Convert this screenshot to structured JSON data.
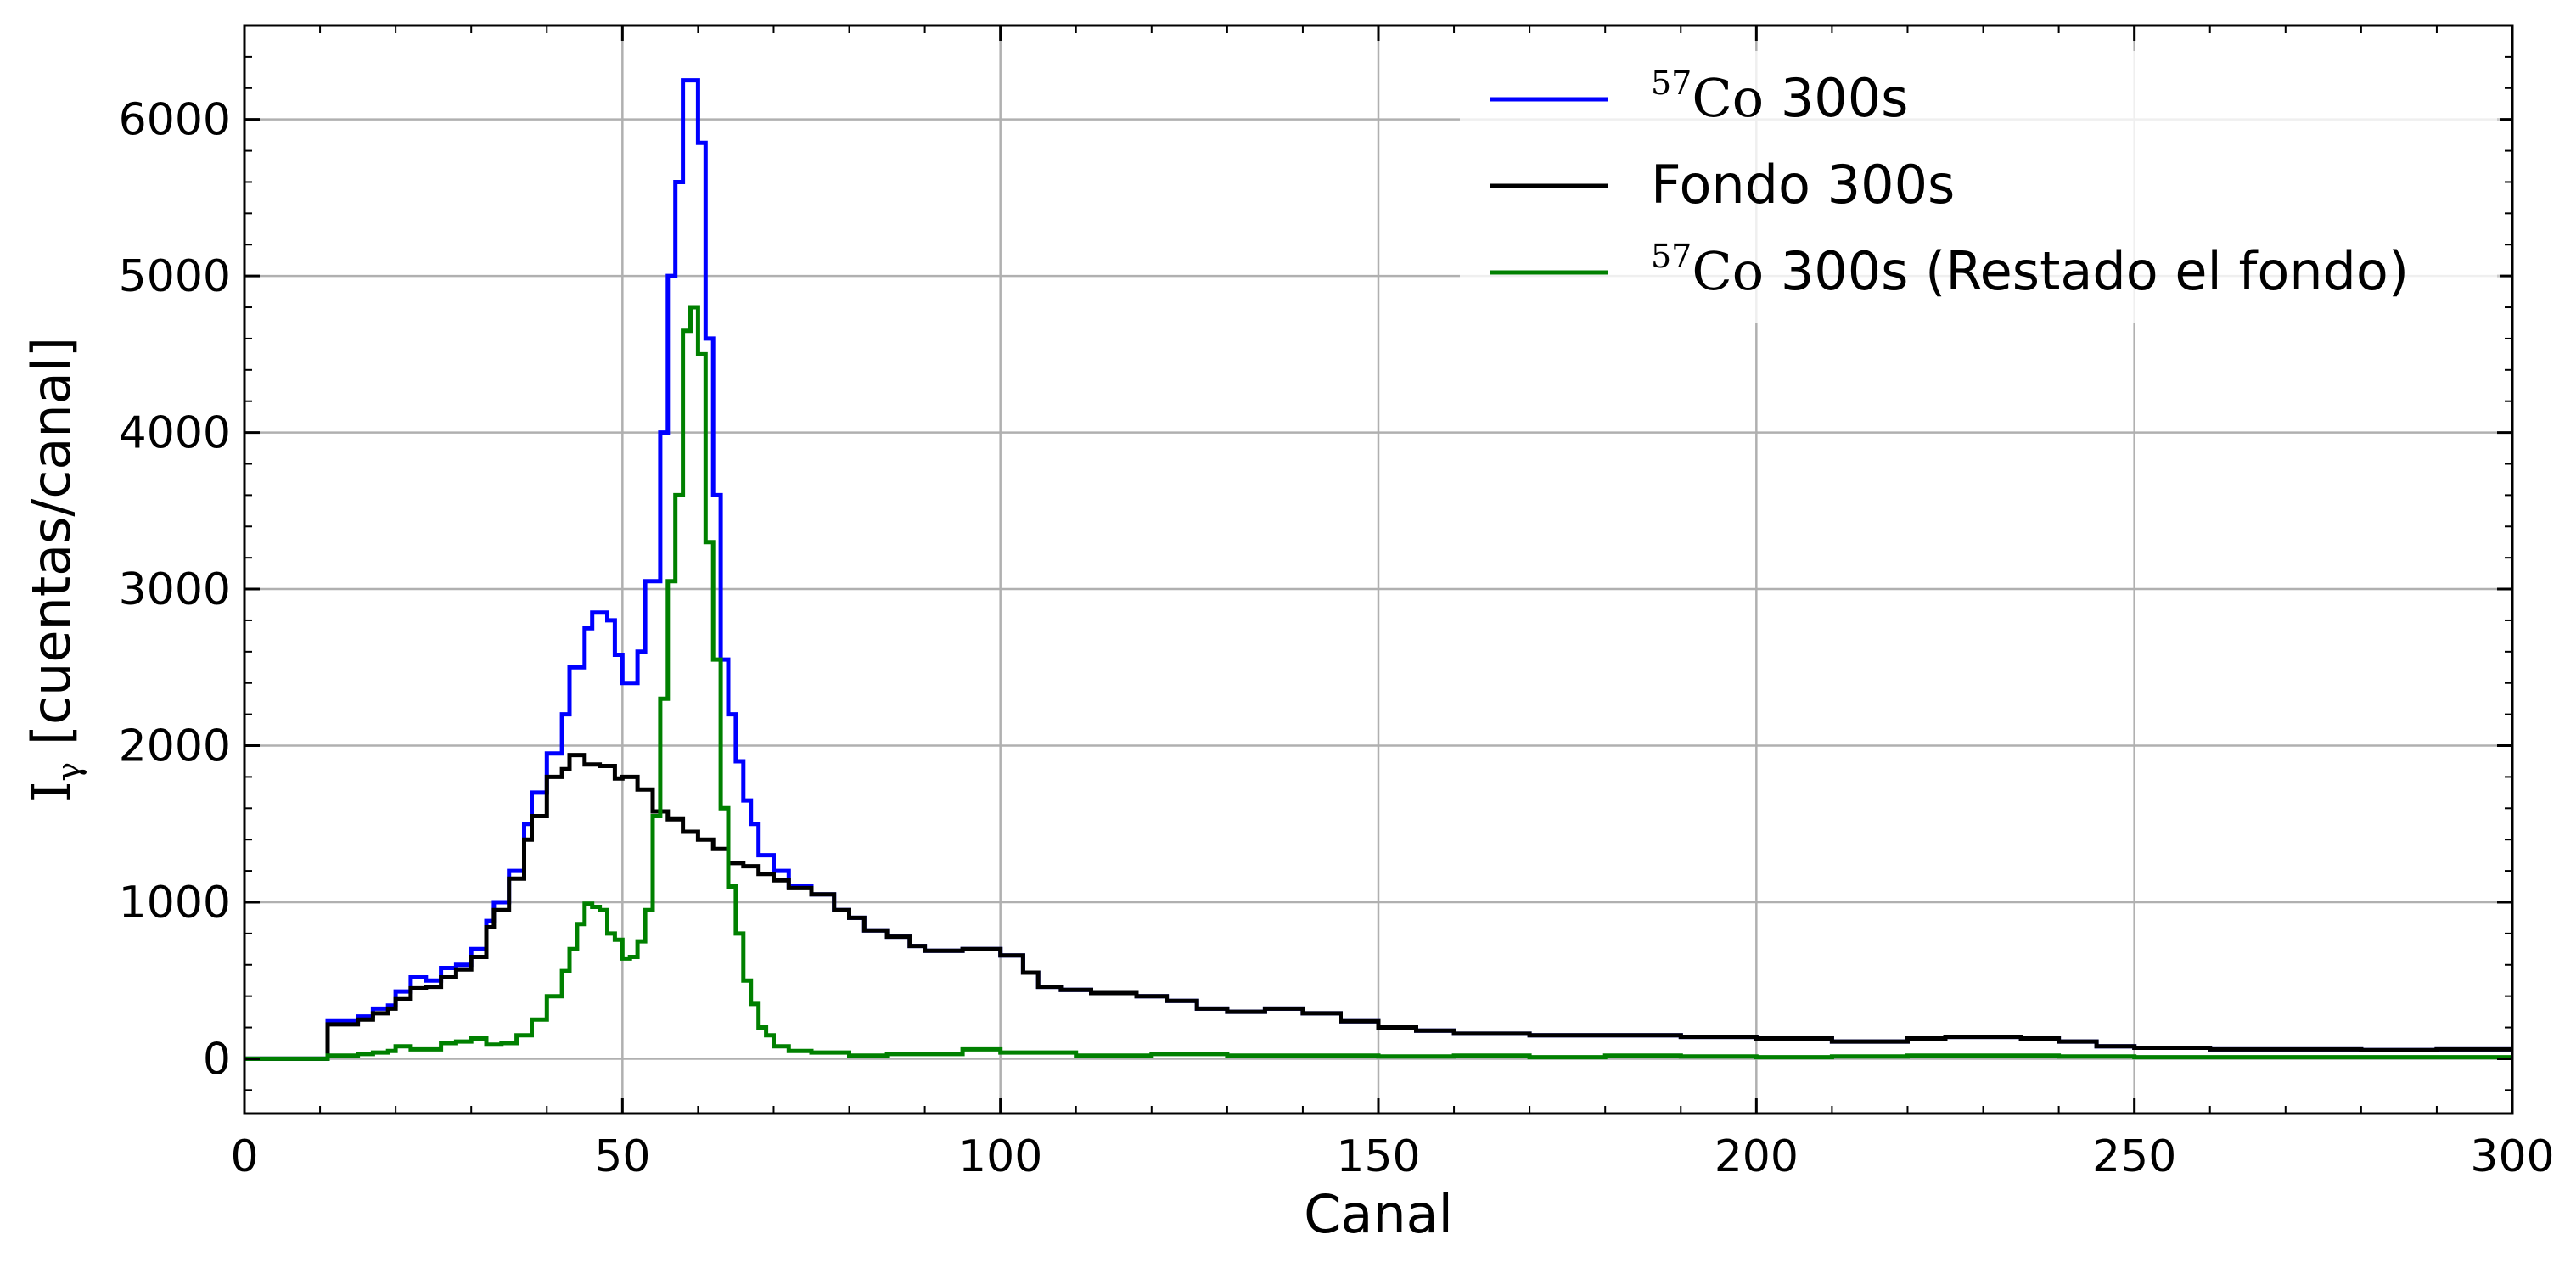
{
  "chart_data": {
    "type": "line",
    "style": "step",
    "xlabel": "Canal",
    "ylabel": "I",
    "ylabel_sub": "γ",
    "ylabel_rest": " [cuentas/canal]",
    "xlim": [
      0,
      300
    ],
    "ylim": [
      -350,
      6600
    ],
    "xticks": [
      0,
      50,
      100,
      150,
      200,
      250,
      300
    ],
    "yticks": [
      0,
      1000,
      2000,
      3000,
      4000,
      5000,
      6000
    ],
    "grid": true,
    "legend_position": "top-right",
    "series": [
      {
        "name": "57Co 300s",
        "name_sup": "57",
        "name_elem": "Co",
        "name_rest": " 300s",
        "color": "#0000ff",
        "points": [
          [
            0,
            0
          ],
          [
            10,
            0
          ],
          [
            11,
            240
          ],
          [
            13,
            240
          ],
          [
            15,
            270
          ],
          [
            17,
            320
          ],
          [
            19,
            340
          ],
          [
            20,
            430
          ],
          [
            22,
            520
          ],
          [
            24,
            500
          ],
          [
            26,
            580
          ],
          [
            28,
            600
          ],
          [
            30,
            700
          ],
          [
            32,
            880
          ],
          [
            33,
            1000
          ],
          [
            35,
            1200
          ],
          [
            37,
            1500
          ],
          [
            38,
            1700
          ],
          [
            40,
            1950
          ],
          [
            42,
            2200
          ],
          [
            43,
            2500
          ],
          [
            45,
            2750
          ],
          [
            46,
            2850
          ],
          [
            48,
            2800
          ],
          [
            49,
            2580
          ],
          [
            50,
            2400
          ],
          [
            52,
            2600
          ],
          [
            53,
            3050
          ],
          [
            55,
            4000
          ],
          [
            56,
            5000
          ],
          [
            57,
            5600
          ],
          [
            58,
            6250
          ],
          [
            60,
            5850
          ],
          [
            61,
            4600
          ],
          [
            62,
            3600
          ],
          [
            63,
            2550
          ],
          [
            64,
            2200
          ],
          [
            65,
            1900
          ],
          [
            66,
            1650
          ],
          [
            67,
            1500
          ],
          [
            68,
            1300
          ],
          [
            70,
            1200
          ],
          [
            72,
            1100
          ],
          [
            75,
            1050
          ],
          [
            78,
            950
          ],
          [
            80,
            900
          ],
          [
            82,
            820
          ],
          [
            85,
            780
          ],
          [
            88,
            720
          ],
          [
            90,
            690
          ],
          [
            95,
            700
          ],
          [
            100,
            660
          ],
          [
            103,
            550
          ],
          [
            105,
            460
          ],
          [
            108,
            440
          ],
          [
            112,
            420
          ],
          [
            118,
            400
          ],
          [
            122,
            370
          ],
          [
            126,
            320
          ],
          [
            130,
            300
          ],
          [
            135,
            320
          ],
          [
            140,
            290
          ],
          [
            145,
            240
          ],
          [
            150,
            200
          ],
          [
            155,
            180
          ],
          [
            160,
            160
          ],
          [
            170,
            150
          ],
          [
            180,
            150
          ],
          [
            190,
            140
          ],
          [
            200,
            130
          ],
          [
            210,
            110
          ],
          [
            220,
            130
          ],
          [
            225,
            140
          ],
          [
            230,
            140
          ],
          [
            235,
            130
          ],
          [
            240,
            110
          ],
          [
            245,
            80
          ],
          [
            250,
            70
          ],
          [
            260,
            60
          ],
          [
            270,
            60
          ],
          [
            280,
            55
          ],
          [
            290,
            60
          ],
          [
            300,
            50
          ]
        ]
      },
      {
        "name": "Fondo 300s",
        "color": "#000000",
        "points": [
          [
            0,
            0
          ],
          [
            10,
            0
          ],
          [
            11,
            220
          ],
          [
            13,
            220
          ],
          [
            15,
            250
          ],
          [
            17,
            290
          ],
          [
            19,
            320
          ],
          [
            20,
            380
          ],
          [
            22,
            450
          ],
          [
            24,
            460
          ],
          [
            26,
            520
          ],
          [
            28,
            570
          ],
          [
            30,
            650
          ],
          [
            32,
            840
          ],
          [
            33,
            950
          ],
          [
            35,
            1150
          ],
          [
            37,
            1400
          ],
          [
            38,
            1550
          ],
          [
            40,
            1800
          ],
          [
            42,
            1850
          ],
          [
            43,
            1940
          ],
          [
            45,
            1880
          ],
          [
            47,
            1870
          ],
          [
            49,
            1790
          ],
          [
            50,
            1800
          ],
          [
            52,
            1720
          ],
          [
            54,
            1580
          ],
          [
            56,
            1530
          ],
          [
            58,
            1450
          ],
          [
            60,
            1400
          ],
          [
            62,
            1340
          ],
          [
            64,
            1250
          ],
          [
            66,
            1230
          ],
          [
            68,
            1180
          ],
          [
            70,
            1140
          ],
          [
            72,
            1090
          ],
          [
            75,
            1050
          ],
          [
            78,
            950
          ],
          [
            80,
            900
          ],
          [
            82,
            820
          ],
          [
            85,
            780
          ],
          [
            88,
            720
          ],
          [
            90,
            690
          ],
          [
            95,
            700
          ],
          [
            100,
            660
          ],
          [
            103,
            550
          ],
          [
            105,
            460
          ],
          [
            108,
            440
          ],
          [
            112,
            420
          ],
          [
            118,
            400
          ],
          [
            122,
            370
          ],
          [
            126,
            320
          ],
          [
            130,
            300
          ],
          [
            135,
            320
          ],
          [
            140,
            290
          ],
          [
            145,
            240
          ],
          [
            150,
            200
          ],
          [
            155,
            180
          ],
          [
            160,
            160
          ],
          [
            170,
            150
          ],
          [
            180,
            150
          ],
          [
            190,
            140
          ],
          [
            200,
            130
          ],
          [
            210,
            110
          ],
          [
            220,
            130
          ],
          [
            225,
            140
          ],
          [
            230,
            140
          ],
          [
            235,
            130
          ],
          [
            240,
            110
          ],
          [
            245,
            80
          ],
          [
            250,
            70
          ],
          [
            260,
            60
          ],
          [
            270,
            60
          ],
          [
            280,
            55
          ],
          [
            290,
            60
          ],
          [
            300,
            50
          ]
        ]
      },
      {
        "name": "57Co 300s (Restado el fondo)",
        "name_sup": "57",
        "name_elem": "Co",
        "name_rest": " 300s (Restado el fondo)",
        "color": "#008000",
        "points": [
          [
            0,
            0
          ],
          [
            10,
            0
          ],
          [
            11,
            20
          ],
          [
            13,
            20
          ],
          [
            15,
            30
          ],
          [
            17,
            40
          ],
          [
            19,
            50
          ],
          [
            20,
            80
          ],
          [
            22,
            60
          ],
          [
            24,
            60
          ],
          [
            26,
            100
          ],
          [
            28,
            110
          ],
          [
            30,
            130
          ],
          [
            32,
            90
          ],
          [
            34,
            100
          ],
          [
            36,
            150
          ],
          [
            38,
            250
          ],
          [
            40,
            400
          ],
          [
            42,
            560
          ],
          [
            43,
            700
          ],
          [
            44,
            860
          ],
          [
            45,
            990
          ],
          [
            46,
            970
          ],
          [
            47,
            950
          ],
          [
            48,
            800
          ],
          [
            49,
            760
          ],
          [
            50,
            640
          ],
          [
            51,
            650
          ],
          [
            52,
            750
          ],
          [
            53,
            950
          ],
          [
            54,
            1550
          ],
          [
            55,
            2300
          ],
          [
            56,
            3050
          ],
          [
            57,
            3600
          ],
          [
            58,
            4650
          ],
          [
            59,
            4800
          ],
          [
            60,
            4500
          ],
          [
            61,
            3300
          ],
          [
            62,
            2550
          ],
          [
            63,
            1600
          ],
          [
            64,
            1100
          ],
          [
            65,
            800
          ],
          [
            66,
            500
          ],
          [
            67,
            350
          ],
          [
            68,
            200
          ],
          [
            69,
            150
          ],
          [
            70,
            80
          ],
          [
            72,
            50
          ],
          [
            75,
            40
          ],
          [
            80,
            20
          ],
          [
            85,
            30
          ],
          [
            90,
            30
          ],
          [
            95,
            60
          ],
          [
            100,
            40
          ],
          [
            110,
            20
          ],
          [
            120,
            30
          ],
          [
            130,
            20
          ],
          [
            140,
            20
          ],
          [
            150,
            15
          ],
          [
            160,
            20
          ],
          [
            170,
            10
          ],
          [
            180,
            20
          ],
          [
            190,
            15
          ],
          [
            200,
            10
          ],
          [
            210,
            15
          ],
          [
            220,
            20
          ],
          [
            230,
            20
          ],
          [
            240,
            15
          ],
          [
            250,
            10
          ],
          [
            260,
            10
          ],
          [
            270,
            10
          ],
          [
            280,
            10
          ],
          [
            290,
            10
          ],
          [
            300,
            5
          ]
        ]
      }
    ]
  }
}
